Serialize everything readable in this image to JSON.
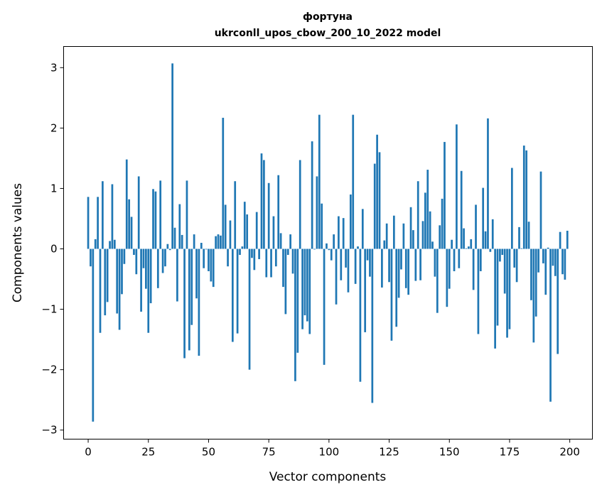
{
  "chart_data": {
    "type": "bar",
    "title": "фортуна",
    "subtitle": "ukrconll_upos_cbow_200_10_2022 model",
    "xlabel": "Vector components",
    "ylabel": "Components values",
    "xlim": [
      -10.2,
      209.4
    ],
    "ylim": [
      -3.15,
      3.35
    ],
    "xticks": [
      0,
      25,
      50,
      75,
      100,
      125,
      150,
      175,
      200
    ],
    "yticks": [
      -3,
      -2,
      -1,
      0,
      1,
      2,
      3
    ],
    "ytick_labels": [
      "−3",
      "−2",
      "−1",
      "0",
      "1",
      "2",
      "3"
    ],
    "grid": false,
    "bar_color": "#1f77b4",
    "values": [
      0.86,
      -0.29,
      -2.86,
      0.16,
      0.86,
      -1.39,
      1.12,
      -1.1,
      -0.88,
      0.13,
      1.07,
      0.15,
      -1.07,
      -1.34,
      -0.75,
      -0.25,
      1.48,
      0.82,
      0.53,
      -0.1,
      -0.42,
      1.2,
      -1.04,
      -0.32,
      -0.66,
      -1.39,
      -0.9,
      0.99,
      0.95,
      -0.65,
      1.13,
      -0.4,
      -0.29,
      0.08,
      -0.02,
      3.07,
      0.35,
      -0.87,
      0.74,
      0.23,
      -1.81,
      1.13,
      -1.68,
      -1.26,
      0.24,
      -0.82,
      -1.77,
      0.1,
      -0.32,
      -0.01,
      -0.37,
      -0.54,
      -0.63,
      0.21,
      0.24,
      0.22,
      2.17,
      0.73,
      -0.29,
      0.47,
      -1.54,
      1.12,
      -1.4,
      -0.1,
      0.04,
      0.78,
      0.57,
      -2.0,
      -0.15,
      -0.35,
      0.61,
      -0.17,
      1.58,
      1.47,
      -0.47,
      1.09,
      -0.47,
      0.54,
      -0.29,
      1.22,
      0.26,
      -0.63,
      -1.08,
      -0.1,
      0.24,
      -0.41,
      -2.19,
      -1.72,
      1.47,
      -1.33,
      -1.1,
      -1.2,
      -1.41,
      1.78,
      -0.01,
      1.2,
      2.22,
      0.75,
      -1.92,
      0.09,
      -0.02,
      -0.19,
      0.24,
      -0.92,
      0.54,
      -0.52,
      0.51,
      -0.31,
      -0.72,
      0.9,
      2.22,
      -0.58,
      0.04,
      -2.2,
      0.66,
      -1.38,
      -0.19,
      -0.46,
      -2.55,
      1.41,
      1.89,
      1.6,
      -0.64,
      0.14,
      0.42,
      -0.55,
      -1.52,
      0.55,
      -1.29,
      -0.81,
      -0.34,
      0.42,
      -0.65,
      -0.76,
      0.69,
      0.31,
      -0.53,
      1.12,
      -0.52,
      0.46,
      0.93,
      1.31,
      0.62,
      0.12,
      -0.46,
      -1.06,
      0.39,
      0.83,
      1.77,
      -0.96,
      -0.66,
      0.15,
      -0.37,
      2.06,
      -0.32,
      1.29,
      0.34,
      0.01,
      0.04,
      0.16,
      -0.68,
      0.73,
      -1.41,
      -0.37,
      1.01,
      0.29,
      2.16,
      -0.05,
      0.49,
      -1.65,
      -1.27,
      -0.21,
      -0.1,
      -0.74,
      -1.47,
      -1.33,
      1.34,
      -0.31,
      -0.55,
      0.36,
      0.01,
      1.71,
      1.63,
      0.45,
      -0.85,
      -1.55,
      -1.12,
      -0.39,
      1.28,
      -0.24,
      -0.76,
      0.02,
      -2.53,
      -0.28,
      -0.45,
      -1.74,
      0.28,
      -0.42,
      -0.51,
      0.3
    ]
  }
}
